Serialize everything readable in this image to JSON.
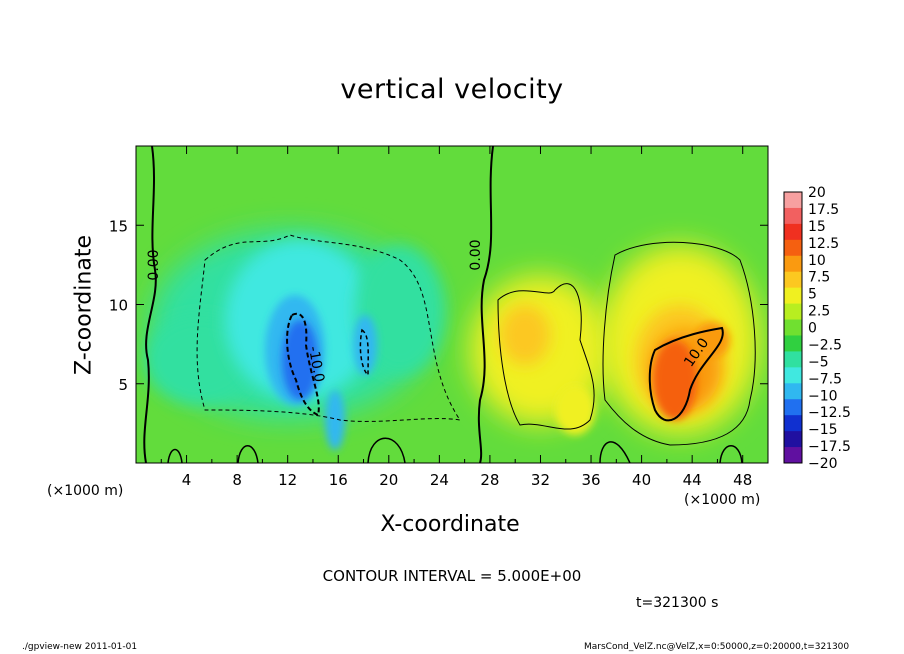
{
  "figure": {
    "title": "vertical velocity",
    "contour_interval": "CONTOUR INTERVAL = 5.000E+00",
    "time_label": "t=321300 s",
    "footer_left": "./gpview-new   2011-01-01",
    "footer_right": "MarsCond_VelZ.nc@VelZ,x=0:50000,z=0:20000,t=321300"
  },
  "axes": {
    "xlabel": "X-coordinate",
    "ylabel": "Z-coordinate",
    "xunit_left": "(×1000 m)",
    "xunit_right": "(×1000 m)"
  },
  "chart_data": {
    "type": "heatmap",
    "title": "vertical velocity",
    "xlabel": "X-coordinate",
    "ylabel": "Z-coordinate",
    "x_units": "×1000 m",
    "xlim": [
      0,
      50
    ],
    "ylim": [
      0,
      20
    ],
    "x_ticks": [
      4,
      8,
      12,
      16,
      20,
      24,
      28,
      32,
      36,
      40,
      44,
      48
    ],
    "y_ticks": [
      5,
      10,
      15
    ],
    "colorbar": {
      "levels": [
        20,
        17.5,
        15,
        12.5,
        10,
        7.5,
        5,
        2.5,
        0,
        -2.5,
        -5,
        -7.5,
        -10,
        -12.5,
        -15,
        -17.5,
        -20
      ],
      "labels": [
        "20",
        "17.5",
        "15",
        "12.5",
        "10",
        "7.5",
        "5",
        "2.5",
        "0",
        "−2.5",
        "−5",
        "−7.5",
        "−10",
        "−12.5",
        "−15",
        "−17.5",
        "−20"
      ],
      "colors": [
        "#f7a0a0",
        "#f26060",
        "#f03020",
        "#f56010",
        "#fa9a10",
        "#fcc820",
        "#f0f020",
        "#b8ee20",
        "#70e030",
        "#30d040",
        "#30e0a0",
        "#40e8e0",
        "#30b8f0",
        "#2070f0",
        "#1030d0",
        "#2010a0",
        "#6010a0"
      ]
    },
    "contour_interval": 5.0,
    "contour_labels": [
      "0.00",
      "0.00",
      "-10.0",
      "10.0"
    ],
    "features": [
      {
        "type": "downdraft",
        "x": 14,
        "z": 7,
        "min": -12.5
      },
      {
        "type": "downdraft",
        "x": 18,
        "z": 7,
        "min": -7.5
      },
      {
        "type": "updraft",
        "x": 42,
        "z": 6,
        "max": 12.5
      },
      {
        "type": "updraft",
        "x": 31,
        "z": 8,
        "max": 7.5
      }
    ],
    "time": "t=321300 s"
  }
}
